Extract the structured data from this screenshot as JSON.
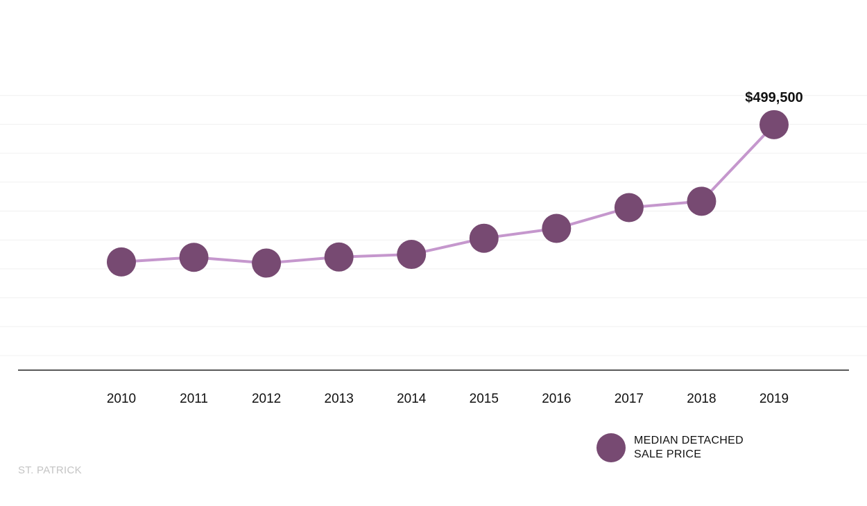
{
  "chart_data": {
    "type": "line",
    "title": "",
    "xlabel": "",
    "ylabel": "",
    "categories": [
      "2010",
      "2011",
      "2012",
      "2013",
      "2014",
      "2015",
      "2016",
      "2017",
      "2018",
      "2019"
    ],
    "series": [
      {
        "name": "MEDIAN DETACHED SALE PRICE",
        "values": [
          262000,
          270000,
          260000,
          270500,
          275000,
          303000,
          320000,
          356000,
          367000,
          499500
        ]
      }
    ],
    "ylim": [
      100000,
      600000
    ],
    "grid": true,
    "legend_position": "bottom-right",
    "annotations": [
      {
        "category": "2019",
        "text": "$499,500"
      }
    ],
    "colors": {
      "line": "#c597cd",
      "marker": "#774a72",
      "axis": "#222222",
      "grid": "#f0f0f0"
    }
  },
  "legend": {
    "line1": "MEDIAN DETACHED",
    "line2": "SALE PRICE"
  },
  "source_label": "ST. PATRICK"
}
